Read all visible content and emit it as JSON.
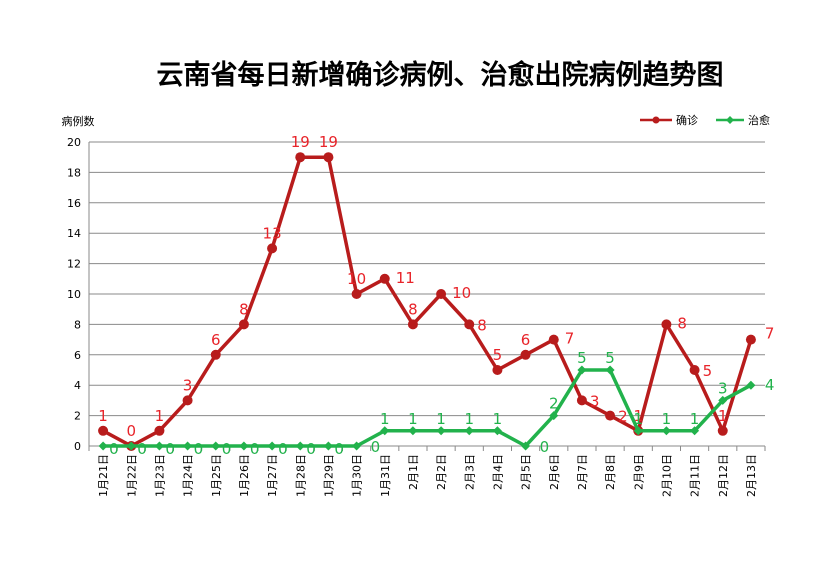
{
  "chart_data": {
    "type": "line",
    "title": "云南省每日新增确诊病例、治愈出院病例趋势图",
    "ylabel": "病例数",
    "xlabel": "",
    "ylim": [
      0,
      20
    ],
    "yticks": [
      0,
      2,
      4,
      6,
      8,
      10,
      12,
      14,
      16,
      18,
      20
    ],
    "grid": true,
    "legend_position": "top-right",
    "categories": [
      "1月21日",
      "1月22日",
      "1月23日",
      "1月24日",
      "1月25日",
      "1月26日",
      "1月27日",
      "1月28日",
      "1月29日",
      "1月30日",
      "1月31日",
      "2月1日",
      "2月2日",
      "2月3日",
      "2月4日",
      "2月5日",
      "2月6日",
      "2月7日",
      "2月8日",
      "2月9日",
      "2月10日",
      "2月11日",
      "2月12日",
      "2月13日"
    ],
    "series": [
      {
        "name": "确诊",
        "color": "#B81C1C",
        "label_color": "#E8242A",
        "marker": "circle",
        "values": [
          1,
          0,
          1,
          3,
          6,
          8,
          13,
          19,
          19,
          10,
          11,
          8,
          10,
          8,
          5,
          6,
          7,
          3,
          2,
          1,
          8,
          5,
          1,
          7
        ]
      },
      {
        "name": "治愈",
        "color": "#22B24C",
        "label_color": "#22B24C",
        "marker": "diamond",
        "values": [
          0,
          0,
          0,
          0,
          0,
          0,
          0,
          0,
          0,
          0,
          1,
          1,
          1,
          1,
          1,
          0,
          2,
          5,
          5,
          1,
          1,
          1,
          3,
          4
        ]
      }
    ]
  }
}
